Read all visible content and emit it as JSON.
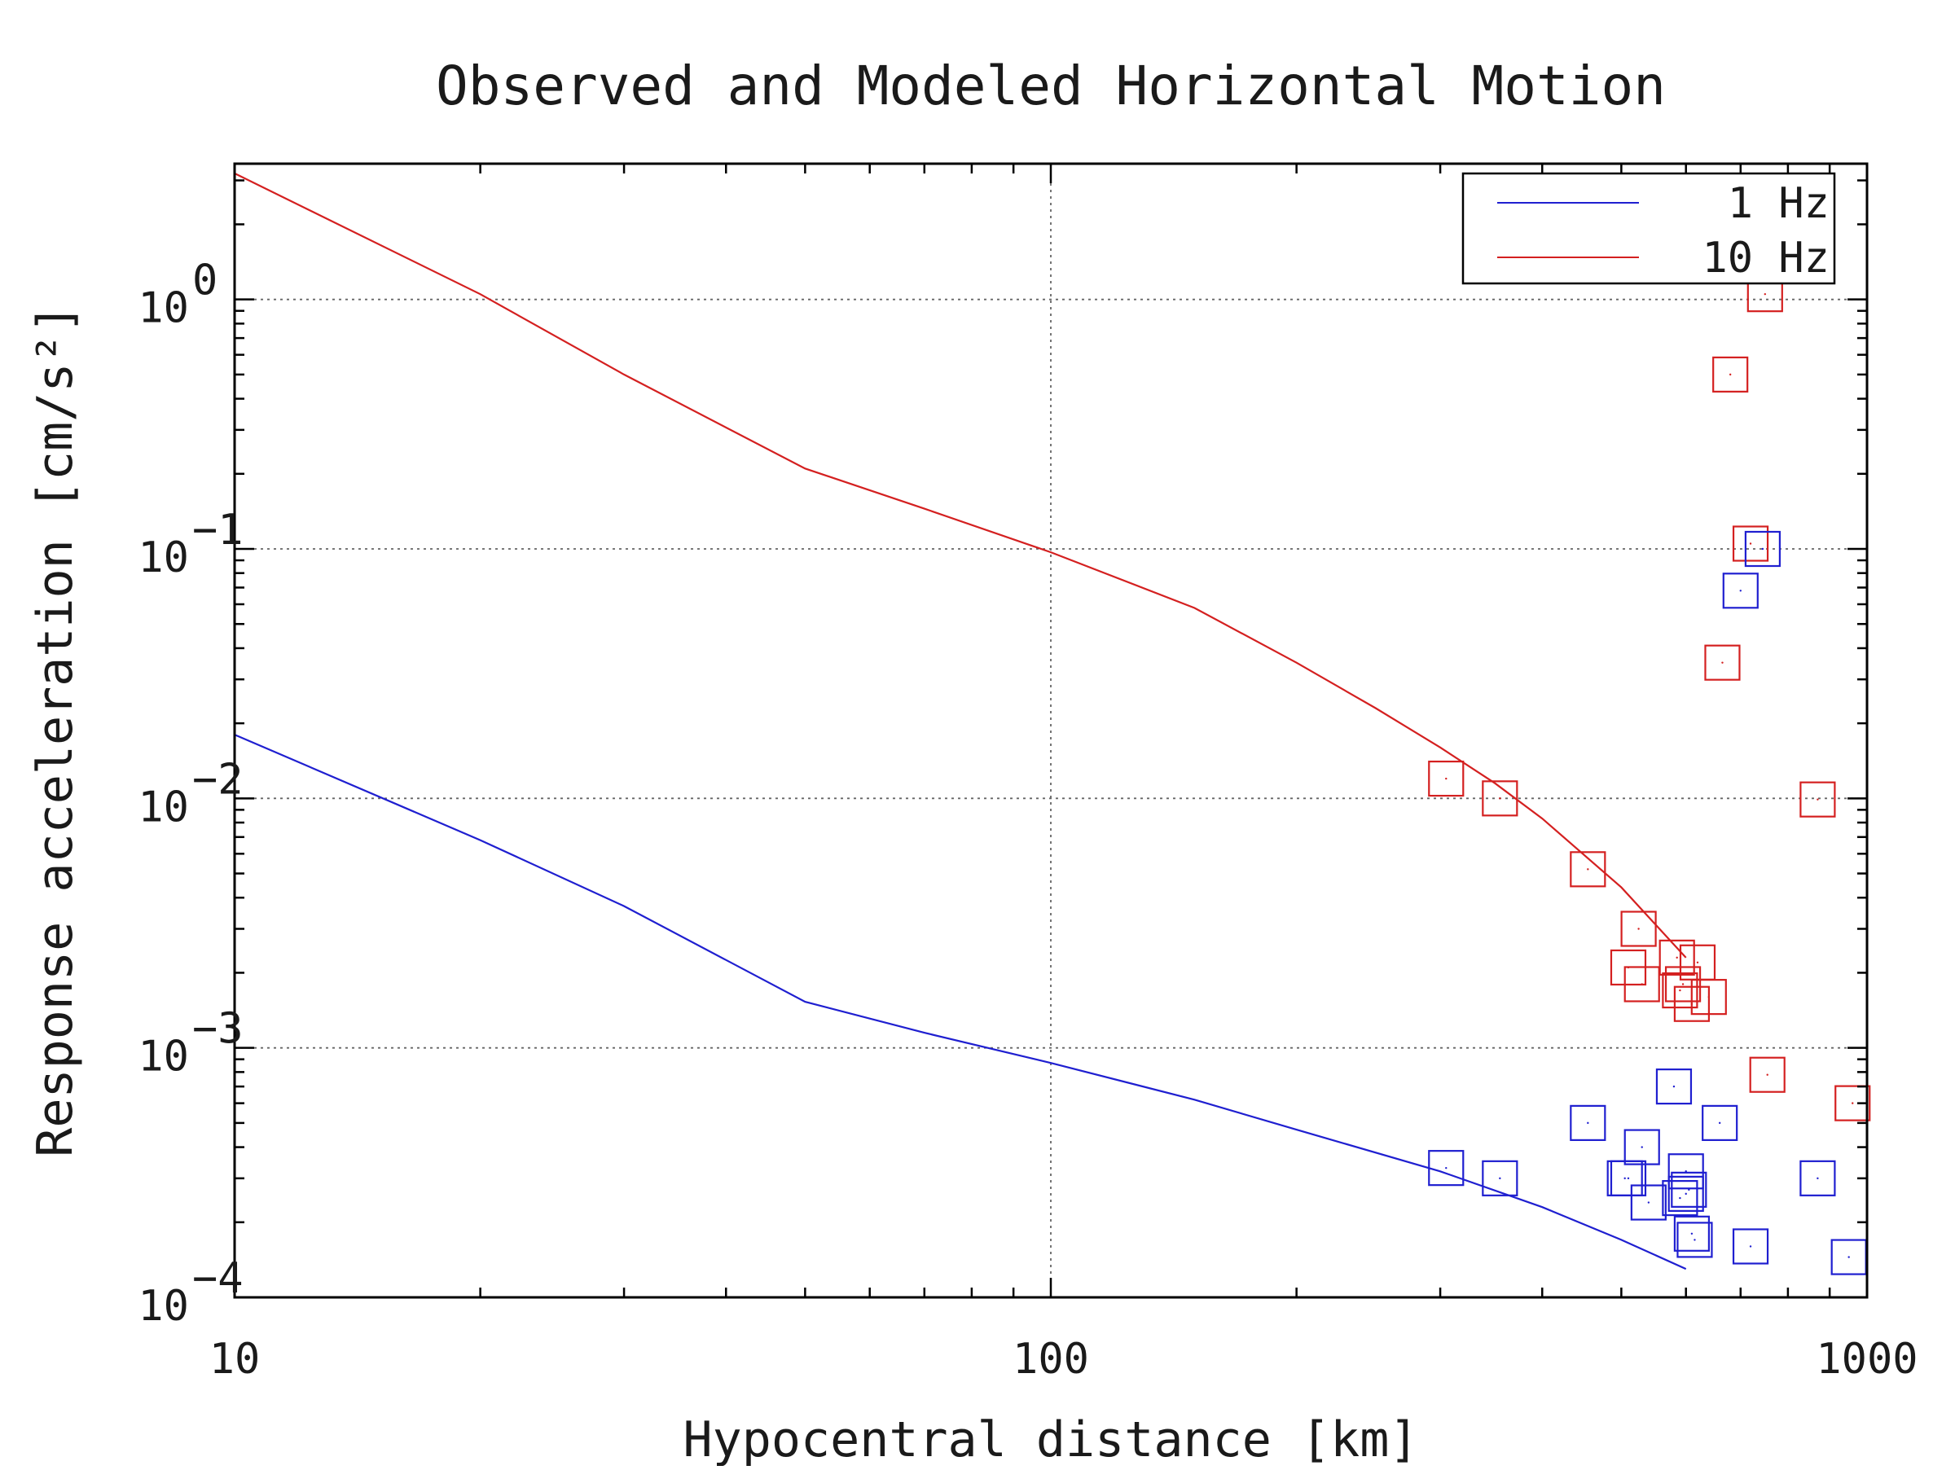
{
  "chart_data": {
    "type": "line",
    "title": "Observed and Modeled Horizontal Motion",
    "xlabel": "Hypocentral distance [km]",
    "ylabel": "Response acceleration [cm/s²]",
    "xscale": "log",
    "yscale": "log",
    "xlim": [
      10,
      1000
    ],
    "ylim": [
      0.0001,
      3.5
    ],
    "xticks": [
      {
        "value": 10,
        "label": "10"
      },
      {
        "value": 100,
        "label": "100"
      },
      {
        "value": 1000,
        "label": "1000"
      }
    ],
    "yticks": [
      {
        "value": 0.0001,
        "mantissa": "10",
        "exponent": "−4"
      },
      {
        "value": 0.001,
        "mantissa": "10",
        "exponent": "−3"
      },
      {
        "value": 0.01,
        "mantissa": "10",
        "exponent": "−2"
      },
      {
        "value": 0.1,
        "mantissa": "10",
        "exponent": "−1"
      },
      {
        "value": 1,
        "mantissa": "10",
        "exponent": "0"
      }
    ],
    "grid": "dotted major gridlines",
    "legend_position": "top-right",
    "series": [
      {
        "name": "1 Hz",
        "color": "#1f1fd0",
        "model": {
          "x": [
            10,
            20,
            30,
            50,
            70,
            100,
            150,
            200,
            300,
            400,
            500,
            600
          ],
          "y": [
            0.018,
            0.0068,
            0.0037,
            0.00153,
            0.00115,
            0.00087,
            0.00062,
            0.00047,
            0.00032,
            0.00023,
            0.00017,
            0.00013
          ]
        },
        "observed": {
          "x": [
            305,
            355,
            455,
            505,
            530,
            510,
            540,
            590,
            600,
            605,
            580,
            610,
            615,
            660,
            720,
            870,
            950,
            600
          ],
          "y": [
            0.00033,
            0.0003,
            0.0005,
            0.0003,
            0.0004,
            0.0003,
            0.00024,
            0.00025,
            0.00032,
            0.00027,
            0.0007,
            0.00018,
            0.00017,
            0.0005,
            0.00016,
            0.0003,
            0.000145,
            0.00026
          ]
        }
      },
      {
        "name": "10 Hz",
        "color": "#d42020",
        "model": {
          "x": [
            10,
            20,
            30,
            50,
            70,
            100,
            150,
            200,
            250,
            300,
            350,
            400,
            500,
            600
          ],
          "y": [
            3.2,
            1.05,
            0.5,
            0.21,
            0.145,
            0.097,
            0.058,
            0.035,
            0.023,
            0.016,
            0.0115,
            0.0083,
            0.0044,
            0.0023
          ]
        },
        "observed": {
          "x": [
            305,
            355,
            455,
            525,
            510,
            530,
            585,
            590,
            595,
            620,
            610,
            640,
            665,
            720,
            680,
            750,
            870,
            960
          ],
          "y": [
            0.012,
            0.01,
            0.0052,
            0.003,
            0.0021,
            0.0018,
            0.0023,
            0.0017,
            0.0018,
            0.0022,
            0.0015,
            0.0016,
            0.035,
            0.105,
            0.5,
            1.05,
            0.0099,
            0.0006
          ]
        }
      },
      {
        "name": "",
        "color": "#d42020",
        "observed": {
          "x": [
            755
          ],
          "y": [
            0.00078
          ]
        }
      },
      {
        "name": "",
        "color": "#1f1fd0",
        "observed": {
          "x": [
            745,
            700
          ],
          "y": [
            0.1,
            0.068
          ]
        }
      }
    ]
  }
}
